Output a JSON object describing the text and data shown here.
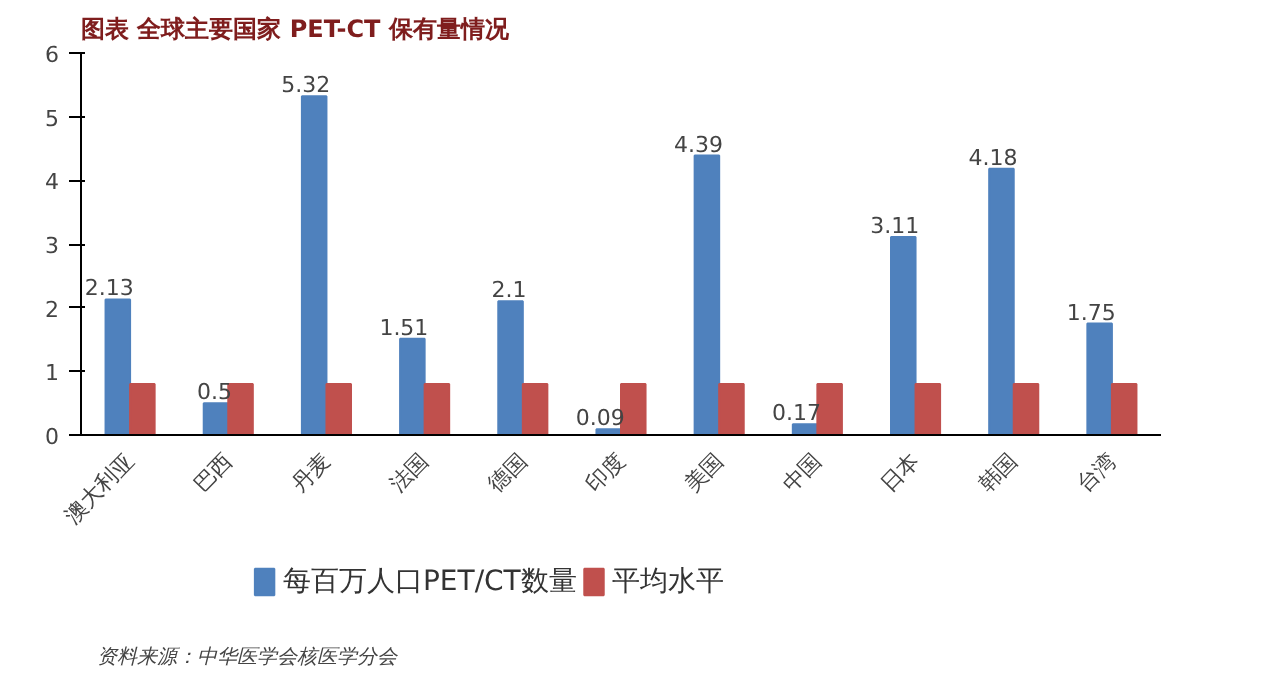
{
  "chart_data": {
    "type": "bar",
    "title": "图表      全球主要国家 PET-CT 保有量情况",
    "categories": [
      "澳大利亚",
      "巴西",
      "丹麦",
      "法国",
      "德国",
      "印度",
      "美国",
      "中国",
      "日本",
      "韩国",
      "台湾"
    ],
    "series": [
      {
        "name": "每百万人口PET/CT数量",
        "color": "#4f81bd",
        "values": [
          2.13,
          0.5,
          5.32,
          1.51,
          2.1,
          0.09,
          4.39,
          0.17,
          3.11,
          4.18,
          1.75
        ],
        "value_labels": [
          "2.13",
          "0.5",
          "5.32",
          "1.51",
          "2.1",
          "0.09",
          "4.39",
          "0.17",
          "3.11",
          "4.18",
          "1.75"
        ]
      },
      {
        "name": "平均水平",
        "color": "#c0504d",
        "values": [
          0.8,
          0.8,
          0.8,
          0.8,
          0.8,
          0.8,
          0.8,
          0.8,
          0.8,
          0.8,
          0.8
        ]
      }
    ],
    "ylim": [
      0,
      6
    ],
    "yticks": [
      0,
      1,
      2,
      3,
      4,
      5,
      6
    ],
    "grid": false,
    "legend": "bottom",
    "annotations": [
      "资料来源：中华医学会核医学分会"
    ]
  }
}
